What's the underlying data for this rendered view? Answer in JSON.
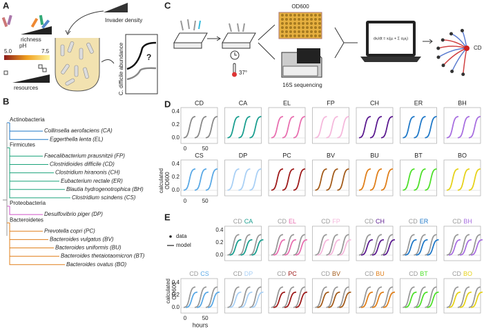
{
  "panelA": {
    "label": "A",
    "richness": "richness",
    "ph": "pH",
    "ph_min": "5.0",
    "ph_max": "7.5",
    "resources": "resources",
    "invader": "Invader density",
    "yaxis": "C. difficile abundance",
    "question": "?"
  },
  "panelB": {
    "label": "B",
    "groups": [
      {
        "name": "Actinobacteria",
        "color": "#1f78c8",
        "species": [
          "Collinsella aerofaciens (CA)",
          "Eggerthella lenta (EL)"
        ]
      },
      {
        "name": "Firmicutes",
        "color": "#1aa37a",
        "species": [
          "Faecalibacterium prausnitzii (FP)",
          "Clostridioides difficile (CD)",
          "Clostridium hiranonis (CH)",
          "Eubacterium rectale (ER)",
          "Blautia hydrogenotrophica (BH)",
          "Clostridium scindens (CS)"
        ]
      },
      {
        "name": "Proteobacteria",
        "color": "#d050c8",
        "species": [
          "Desulfovibrio piger (DP)"
        ]
      },
      {
        "name": "Bacteroidetes",
        "color": "#e07f1a",
        "species": [
          "Prevotella copri (PC)",
          "Bacteroides vulgatus (BV)",
          "Bacteroides uniformis (BU)",
          "Bacteroides thetaiotaomicron (BT)",
          "Bacteroides ovatus (BO)"
        ]
      }
    ]
  },
  "panelC": {
    "label": "C",
    "od": "OD600",
    "seq": "16S sequencing",
    "temp": "37°",
    "equation": "dxᵢ/dt = xᵢ(μᵢ + Σ αᵢⱼxⱼ)",
    "node": "CD"
  },
  "panelD": {
    "label": "D",
    "ylabel": [
      "calculated",
      "OD600"
    ],
    "yticks": [
      "0.0",
      "0.2",
      "0.4"
    ],
    "xticks": [
      "0",
      "50"
    ],
    "plots": [
      {
        "name": "CD",
        "color": "#888888"
      },
      {
        "name": "CA",
        "color": "#1a9e8f"
      },
      {
        "name": "EL",
        "color": "#e86fb0"
      },
      {
        "name": "FP",
        "color": "#f5b8dc"
      },
      {
        "name": "CH",
        "color": "#5b1a8f"
      },
      {
        "name": "ER",
        "color": "#1f78c8"
      },
      {
        "name": "BH",
        "color": "#a86fe0"
      },
      {
        "name": "CS",
        "color": "#5aa9e6"
      },
      {
        "name": "DP",
        "color": "#a9d0f5"
      },
      {
        "name": "PC",
        "color": "#9e1a1a"
      },
      {
        "name": "BV",
        "color": "#a35b1a"
      },
      {
        "name": "BU",
        "color": "#e07f1a"
      },
      {
        "name": "BT",
        "color": "#4ee02a"
      },
      {
        "name": "BO",
        "color": "#e6d21a"
      }
    ]
  },
  "panelE": {
    "label": "E",
    "legend": [
      "data",
      "model"
    ],
    "base": "CD",
    "ylabel": [
      "calculated",
      "OD600"
    ],
    "yticks": [
      "0.0",
      "0.2",
      "0.4"
    ],
    "xticks": [
      "0",
      "50"
    ],
    "xlabel": "hours"
  }
}
